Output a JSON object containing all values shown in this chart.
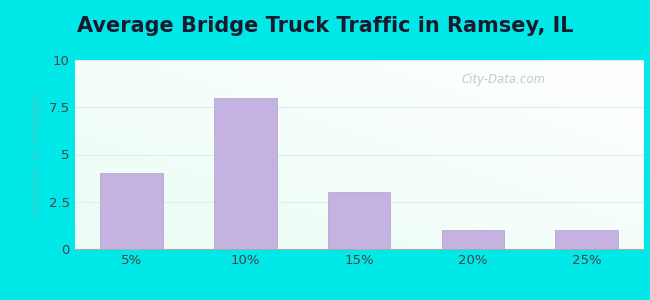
{
  "title": "Average Bridge Truck Traffic in Ramsey, IL",
  "categories": [
    "5%",
    "10%",
    "15%",
    "20%",
    "25%"
  ],
  "values": [
    4,
    8,
    3,
    1,
    1
  ],
  "bar_color": "#c4b3e0",
  "bar_edgecolor": "#b0a0d0",
  "ylabel": "number of bridges",
  "ylim": [
    0,
    10
  ],
  "yticks": [
    0,
    2.5,
    5,
    7.5,
    10
  ],
  "title_fontsize": 15,
  "ylabel_color": "#3ecece",
  "tick_label_color": "#444444",
  "outer_bg_color": "#00e8e8",
  "watermark_text": "City-Data.com",
  "watermark_color": "#b8c8cc",
  "grid_color": "#ddeeee",
  "bottom_spine_color": "#aaaaaa"
}
